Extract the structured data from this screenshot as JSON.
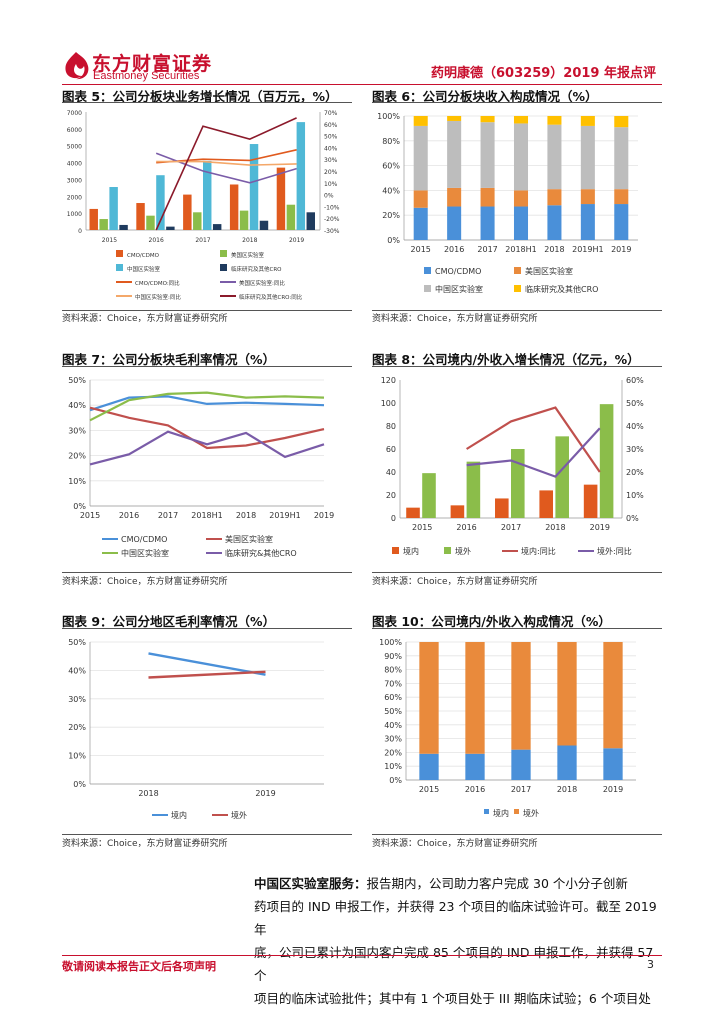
{
  "header": {
    "brand_cn": "东方财富证券",
    "brand_en": "Eastmoney Securities",
    "report_title": "药明康德（603259）2019 年报点评"
  },
  "colors": {
    "orange": "#e05a1e",
    "cyan": "#4fb8d6",
    "green": "#8bbd4a",
    "navy": "#1f3b5e",
    "purple": "#7a5ca8",
    "blue": "#4a90d9",
    "gray": "#bdbdbd",
    "yellow": "#ffc000",
    "darkred": "#8b1a2b",
    "red": "#c0504d",
    "lightorange": "#f4a86a"
  },
  "figures": [
    {
      "title": "图表 5：公司分板块业务增长情况（百万元，%）",
      "source": "资料来源：Choice，东方财富证券研究所"
    },
    {
      "title": "图表 6：公司分板块收入构成情况（%）",
      "source": "资料来源：Choice，东方财富证券研究所"
    },
    {
      "title": "图表 7：公司分板块毛利率情况（%）",
      "source": "资料来源：Choice，东方财富证券研究所"
    },
    {
      "title": "图表 8：公司境内/外收入增长情况（亿元，%）",
      "source": "资料来源：Choice，东方财富证券研究所"
    },
    {
      "title": "图表 9：公司分地区毛利率情况（%）",
      "source": "资料来源：Choice，东方财富证券研究所"
    },
    {
      "title": "图表 10：公司境内/外收入构成情况（%）",
      "source": "资料来源：Choice，东方财富证券研究所"
    }
  ],
  "chart_data": [
    {
      "type": "bar",
      "categories": [
        "2015",
        "2016",
        "2017",
        "2018",
        "2019"
      ],
      "y_ticks": [
        "0",
        "1000",
        "2000",
        "3000",
        "4000",
        "5000",
        "6000",
        "7000"
      ],
      "y2_ticks": [
        "-30%",
        "-20%",
        "-10%",
        "0%",
        "10%",
        "20%",
        "30%",
        "40%",
        "50%",
        "60%",
        "70%"
      ],
      "ylim": [
        0,
        7000
      ],
      "y2lim": [
        -30,
        70
      ],
      "series": [
        {
          "name": "CMO/CDMO",
          "kind": "bar",
          "color": "#e05a1e",
          "values": [
            1250,
            1600,
            2100,
            2700,
            3700
          ]
        },
        {
          "name": "美国区实验室",
          "kind": "bar",
          "color": "#8bbd4a",
          "values": [
            650,
            850,
            1050,
            1150,
            1500
          ]
        },
        {
          "name": "中国区实验室",
          "kind": "bar",
          "color": "#4fb8d6",
          "values": [
            2550,
            3250,
            4100,
            5100,
            6400
          ]
        },
        {
          "name": "临床研究及其他CRO",
          "kind": "bar",
          "color": "#1f3b5e",
          "values": [
            300,
            200,
            350,
            550,
            1050
          ]
        },
        {
          "name": "CMO/CDMO:同比",
          "kind": "line",
          "color": "#e05a1e",
          "values": [
            null,
            27,
            30,
            29,
            38
          ]
        },
        {
          "name": "美国区实验室:同比",
          "kind": "line",
          "color": "#7a5ca8",
          "values": [
            null,
            35,
            20,
            10,
            22
          ]
        },
        {
          "name": "中国区实验室:同比",
          "kind": "line",
          "color": "#f4a86a",
          "values": [
            null,
            28,
            28,
            25,
            26
          ]
        },
        {
          "name": "临床研究及其他CRO:同比",
          "kind": "line",
          "color": "#8b1a2b",
          "values": [
            null,
            -30,
            58,
            47,
            65
          ]
        }
      ]
    },
    {
      "type": "bar",
      "stacked": true,
      "categories": [
        "2015",
        "2016",
        "2017",
        "2018H1",
        "2018",
        "2019H1",
        "2019"
      ],
      "y_ticks": [
        "0%",
        "20%",
        "40%",
        "60%",
        "80%",
        "100%"
      ],
      "ylim": [
        0,
        100
      ],
      "series": [
        {
          "name": "CMO/CDMO",
          "color": "#4a90d9",
          "values": [
            26,
            27,
            27,
            27,
            28,
            29,
            29
          ]
        },
        {
          "name": "美国区实验室",
          "color": "#e98a3c",
          "values": [
            14,
            15,
            15,
            13,
            13,
            12,
            12
          ]
        },
        {
          "name": "中国区实验室",
          "color": "#bdbdbd",
          "values": [
            52,
            54,
            53,
            54,
            52,
            51,
            50
          ]
        },
        {
          "name": "临床研究及其他CRO",
          "color": "#ffc000",
          "values": [
            8,
            4,
            5,
            6,
            7,
            8,
            9
          ]
        }
      ]
    },
    {
      "type": "line",
      "categories": [
        "2015",
        "2016",
        "2017",
        "2018H1",
        "2018",
        "2019H1",
        "2019"
      ],
      "y_ticks": [
        "0%",
        "10%",
        "20%",
        "30%",
        "40%",
        "50%"
      ],
      "ylim": [
        0,
        50
      ],
      "series": [
        {
          "name": "CMO/CDMO",
          "color": "#4a90d9",
          "values": [
            38,
            43,
            43.5,
            40.5,
            41,
            40.5,
            40
          ]
        },
        {
          "name": "美国区实验室",
          "color": "#c0504d",
          "values": [
            39,
            35,
            32,
            23,
            24,
            27,
            30.5
          ]
        },
        {
          "name": "中国区实验室",
          "color": "#8bbd4a",
          "values": [
            34,
            42,
            44.5,
            45,
            43,
            43.5,
            43
          ]
        },
        {
          "name": "临床研究&其他CRO",
          "color": "#7a5ca8",
          "values": [
            16.5,
            20.5,
            29.5,
            24.5,
            29,
            19.5,
            24.5
          ]
        }
      ]
    },
    {
      "type": "bar",
      "categories": [
        "2015",
        "2016",
        "2017",
        "2018",
        "2019"
      ],
      "y_ticks": [
        "0",
        "20",
        "40",
        "60",
        "80",
        "100",
        "120"
      ],
      "y2_ticks": [
        "0%",
        "10%",
        "20%",
        "30%",
        "40%",
        "50%",
        "60%"
      ],
      "ylim": [
        0,
        120
      ],
      "y2lim": [
        0,
        60
      ],
      "series": [
        {
          "name": "境内",
          "kind": "bar",
          "color": "#e05a1e",
          "values": [
            9,
            11,
            17,
            24,
            29
          ]
        },
        {
          "name": "境外",
          "kind": "bar",
          "color": "#8bbd4a",
          "values": [
            39,
            49,
            60,
            71,
            99
          ]
        },
        {
          "name": "境内:同比",
          "kind": "line",
          "color": "#c0504d",
          "values": [
            null,
            30,
            42,
            48,
            20
          ]
        },
        {
          "name": "境外:同比",
          "kind": "line",
          "color": "#7a5ca8",
          "values": [
            null,
            23,
            25,
            18,
            39
          ]
        }
      ]
    },
    {
      "type": "line",
      "categories": [
        "2018",
        "2019"
      ],
      "y_ticks": [
        "0%",
        "10%",
        "20%",
        "30%",
        "40%",
        "50%"
      ],
      "ylim": [
        0,
        50
      ],
      "series": [
        {
          "name": "境内",
          "color": "#4a90d9",
          "values": [
            46,
            38.5
          ]
        },
        {
          "name": "境外",
          "color": "#c0504d",
          "values": [
            37.5,
            39.5
          ]
        }
      ]
    },
    {
      "type": "bar",
      "stacked": true,
      "categories": [
        "2015",
        "2016",
        "2017",
        "2018",
        "2019"
      ],
      "y_ticks": [
        "0%",
        "10%",
        "20%",
        "30%",
        "40%",
        "50%",
        "60%",
        "70%",
        "80%",
        "90%",
        "100%"
      ],
      "ylim": [
        0,
        100
      ],
      "series": [
        {
          "name": "境内",
          "color": "#4a90d9",
          "values": [
            19,
            19,
            22,
            25,
            23
          ]
        },
        {
          "name": "境外",
          "color": "#e98a3c",
          "values": [
            81,
            81,
            78,
            75,
            77
          ]
        }
      ]
    }
  ],
  "body_text": {
    "lead": "中国区实验室服务：",
    "line1_rest": "报告期内，公司助力客户完成 30 个小分子创新",
    "line2": "药项目的 IND 申报工作，并获得 23 个项目的临床试验许可。截至 2019 年",
    "line3": "底，公司已累计为国内客户完成 85 个项目的 IND 申报工作，并获得 57 个",
    "line4": "项目的临床试验批件；其中有 1 个项目处于 III 期临床试验；6 个项目处"
  },
  "footer": {
    "disclaimer": "敬请阅读本报告正文后各项声明",
    "page": "3"
  }
}
